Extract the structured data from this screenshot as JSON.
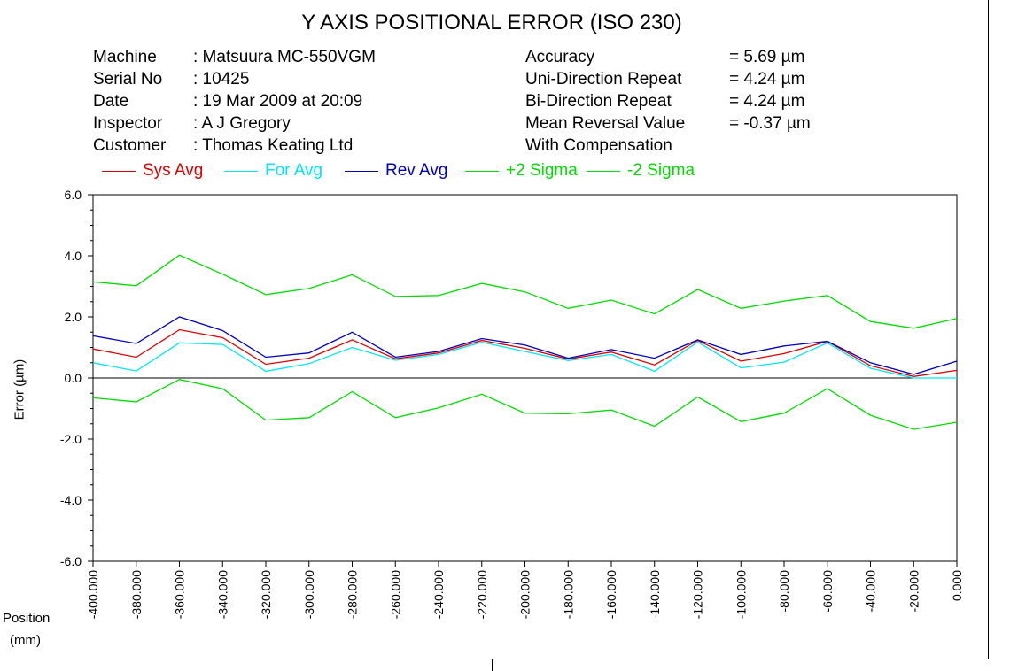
{
  "header": {
    "title": "Y AXIS POSITIONAL ERROR (ISO 230)"
  },
  "info": [
    {
      "label": "Machine",
      "value": ": Matsuura MC-550VGM"
    },
    {
      "label": "Serial No",
      "value": ": 10425"
    },
    {
      "label": "Date",
      "value": ": 19 Mar 2009 at 20:09"
    },
    {
      "label": "Inspector",
      "value": ": A J Gregory"
    },
    {
      "label": "Customer",
      "value": ": Thomas Keating Ltd"
    }
  ],
  "stats": [
    {
      "label": "Accuracy",
      "value": "=  5.69 µm"
    },
    {
      "label": "Uni-Direction Repeat",
      "value": "=  4.24 µm"
    },
    {
      "label": "Bi-Direction Repeat",
      "value": "=  4.24 µm"
    },
    {
      "label": "Mean Reversal Value",
      "value": "= -0.37 µm"
    },
    {
      "label": "With Compensation",
      "value": ""
    }
  ],
  "colors": {
    "sys_avg": "#e00000",
    "for_avg": "#00e8f0",
    "rev_avg": "#0000c0",
    "plus_sigma": "#00dd00",
    "minus_sigma": "#00dd00",
    "axis": "#000000"
  },
  "chart_data": {
    "type": "line",
    "title": "Y AXIS POSITIONAL ERROR (ISO 230)",
    "ylabel": "Error (µm)",
    "xlabel_line1": "Position",
    "xlabel_line2": "(mm)",
    "ylim": [
      -6.0,
      6.0
    ],
    "xlim": [
      -400,
      0
    ],
    "y_ticks": [
      "6.0",
      "4.0",
      "2.0",
      "0.0",
      "-2.0",
      "-4.0",
      "-6.0"
    ],
    "y_tick_values": [
      6,
      4,
      2,
      0,
      -2,
      -4,
      -6
    ],
    "x": [
      -400,
      -380,
      -360,
      -340,
      -320,
      -300,
      -280,
      -260,
      -240,
      -220,
      -200,
      -180,
      -160,
      -140,
      -120,
      -100,
      -80,
      -60,
      -40,
      -20,
      0
    ],
    "x_tick_labels": [
      "-400.000",
      "-380.000",
      "-360.000",
      "-340.000",
      "-320.000",
      "-300.000",
      "-280.000",
      "-260.000",
      "-240.000",
      "-220.000",
      "-200.000",
      "-180.000",
      "-160.000",
      "-140.000",
      "-120.000",
      "-100.000",
      "-80.000",
      "-60.000",
      "-40.000",
      "-20.000",
      "0.000"
    ],
    "legend_position": "top",
    "grid": false,
    "series": [
      {
        "name": "Sys Avg",
        "color_key": "sys_avg",
        "values": [
          0.95,
          0.68,
          1.58,
          1.32,
          0.45,
          0.65,
          1.25,
          0.63,
          0.82,
          1.23,
          0.97,
          0.62,
          0.85,
          0.43,
          1.23,
          0.55,
          0.8,
          1.2,
          0.4,
          0.05,
          0.25
        ]
      },
      {
        "name": "For Avg",
        "color_key": "for_avg",
        "values": [
          0.5,
          0.23,
          1.15,
          1.1,
          0.22,
          0.47,
          1.0,
          0.58,
          0.77,
          1.17,
          0.87,
          0.57,
          0.77,
          0.22,
          1.18,
          0.33,
          0.52,
          1.15,
          0.32,
          0.0,
          0.0
        ]
      },
      {
        "name": "Rev Avg",
        "color_key": "rev_avg",
        "values": [
          1.38,
          1.13,
          2.0,
          1.55,
          0.68,
          0.82,
          1.5,
          0.68,
          0.87,
          1.29,
          1.08,
          0.65,
          0.93,
          0.65,
          1.25,
          0.77,
          1.05,
          1.2,
          0.5,
          0.12,
          0.55
        ]
      },
      {
        "name": "+2 Sigma",
        "color_key": "plus_sigma",
        "values": [
          3.15,
          3.02,
          4.02,
          3.4,
          2.73,
          2.93,
          3.38,
          2.67,
          2.7,
          3.1,
          2.82,
          2.28,
          2.55,
          2.1,
          2.9,
          2.28,
          2.52,
          2.7,
          1.85,
          1.63,
          1.95
        ]
      },
      {
        "name": "-2 Sigma",
        "color_key": "minus_sigma",
        "values": [
          -0.65,
          -0.78,
          -0.05,
          -0.35,
          -1.38,
          -1.3,
          -0.45,
          -1.3,
          -0.98,
          -0.53,
          -1.15,
          -1.17,
          -1.05,
          -1.58,
          -0.62,
          -1.43,
          -1.15,
          -0.35,
          -1.22,
          -1.68,
          -1.45
        ]
      }
    ]
  }
}
